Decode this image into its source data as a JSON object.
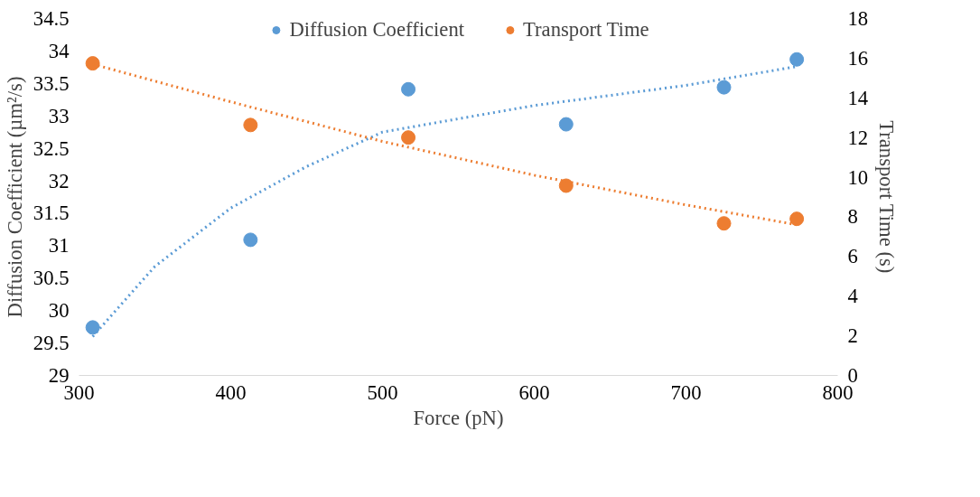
{
  "chart_data": {
    "type": "scatter",
    "xlabel": "Force (pN)",
    "ylabel": "Diffusion Coefficient (µm²/s)",
    "y2label": "Transport Time (s)",
    "xlim": [
      300,
      800
    ],
    "xticks": [
      300,
      400,
      500,
      600,
      700,
      800
    ],
    "ylim": [
      29,
      34.5
    ],
    "yticks": [
      29,
      29.5,
      30,
      30.5,
      31,
      31.5,
      32,
      32.5,
      33,
      33.5,
      34,
      34.5
    ],
    "y2lim": [
      0,
      18
    ],
    "y2ticks": [
      0,
      2,
      4,
      6,
      8,
      10,
      12,
      14,
      16,
      18
    ],
    "grid": false,
    "legend": "top",
    "marker": "circle",
    "series": [
      {
        "name": "Diffusion Coefficient",
        "color": "#5b9bd5",
        "x": [
          309,
          413,
          517,
          621,
          725,
          773
        ],
        "values": [
          29.74,
          31.09,
          33.41,
          32.87,
          33.44,
          33.87
        ]
      },
      {
        "name": "Transport Time",
        "color": "#ed7d31",
        "axis": "y2",
        "x": [
          309,
          413,
          517,
          621,
          725,
          773
        ],
        "values": [
          15.74,
          12.63,
          12.0,
          9.57,
          7.67,
          7.9
        ]
      },
      {
        "type": "line",
        "marker": "none",
        "color": "#5b9bd5",
        "line_style": "dotted",
        "x": [
          309,
          350,
          400,
          450,
          500,
          600,
          700,
          773
        ],
        "values": [
          29.6,
          30.68,
          31.58,
          32.22,
          32.75,
          33.16,
          33.47,
          33.76
        ]
      },
      {
        "type": "line",
        "marker": "none",
        "color": "#ed7d31",
        "line_style": "dotted",
        "axis": "y2",
        "x": [
          309,
          400,
          500,
          600,
          700,
          773
        ],
        "values": [
          15.7,
          13.8,
          11.8,
          10.1,
          8.6,
          7.6
        ]
      }
    ]
  }
}
